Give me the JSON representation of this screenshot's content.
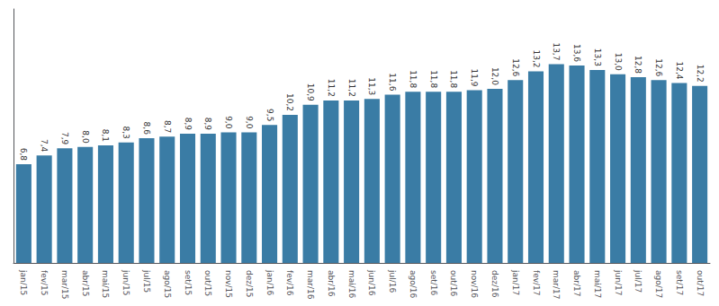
{
  "chart_data": {
    "type": "bar",
    "categories": [
      "jan/15",
      "fev/15",
      "mar/15",
      "abr/15",
      "mai/15",
      "jun/15",
      "jul/15",
      "ago/15",
      "set/15",
      "out/15",
      "nov/15",
      "dez/15",
      "jan/16",
      "fev/16",
      "mar/16",
      "abr/16",
      "mai/16",
      "jun/16",
      "jul/16",
      "ago/16",
      "set/16",
      "out/16",
      "nov/16",
      "dez/16",
      "jan/17",
      "fev/17",
      "mar/17",
      "abr/17",
      "mai/17",
      "jun/17",
      "jul/17",
      "ago/17",
      "set/17",
      "out/17"
    ],
    "values": [
      6.8,
      7.4,
      7.9,
      8.0,
      8.1,
      8.3,
      8.6,
      8.7,
      8.9,
      8.9,
      9.0,
      9.0,
      9.5,
      10.2,
      10.9,
      11.2,
      11.2,
      11.3,
      11.6,
      11.8,
      11.8,
      11.8,
      11.9,
      12.0,
      12.6,
      13.2,
      13.7,
      13.6,
      13.3,
      13.0,
      12.8,
      12.6,
      12.4,
      12.2
    ],
    "value_labels": [
      "6,8",
      "7,4",
      "7,9",
      "8,0",
      "8,1",
      "8,3",
      "8,6",
      "8,7",
      "8,9",
      "8,9",
      "9,0",
      "9,0",
      "9,5",
      "10,2",
      "10,9",
      "11,2",
      "11,2",
      "11,3",
      "11,6",
      "11,8",
      "11,8",
      "11,8",
      "11,9",
      "12,0",
      "12,6",
      "13,2",
      "13,7",
      "13,6",
      "13,3",
      "13,0",
      "12,8",
      "12,6",
      "12,4",
      "12,2"
    ],
    "color": "#3a7ca5",
    "ylim": [
      0,
      17.5
    ],
    "data_labels": true,
    "tick_labels": "x",
    "grid": false
  }
}
